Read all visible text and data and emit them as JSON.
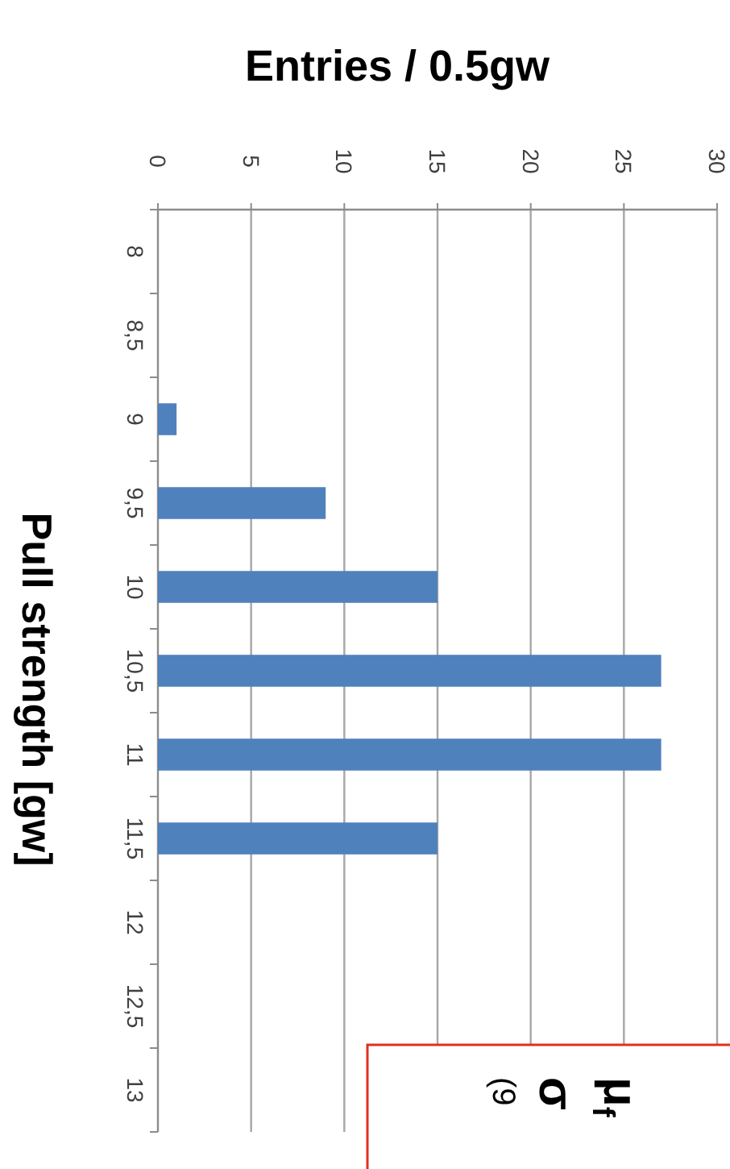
{
  "chart_data": {
    "type": "bar",
    "orientation": "horizontal",
    "xlabel": "Entries / 0.5gw",
    "ylabel": "Pull strength [gw]",
    "categories": [
      "8",
      "8,5",
      "9",
      "9,5",
      "10",
      "10,5",
      "11",
      "11,5",
      "12",
      "12,5",
      "13"
    ],
    "values": [
      0,
      0,
      1,
      9,
      15,
      27,
      27,
      15,
      0,
      0,
      0
    ],
    "color": "#4f81bd",
    "xlim": [
      0,
      30
    ],
    "xticks": [
      0,
      5,
      10,
      15,
      20,
      25,
      30
    ],
    "grid": "x",
    "annotations": [
      "μ$_{f}$",
      "σ",
      "(9"
    ]
  }
}
